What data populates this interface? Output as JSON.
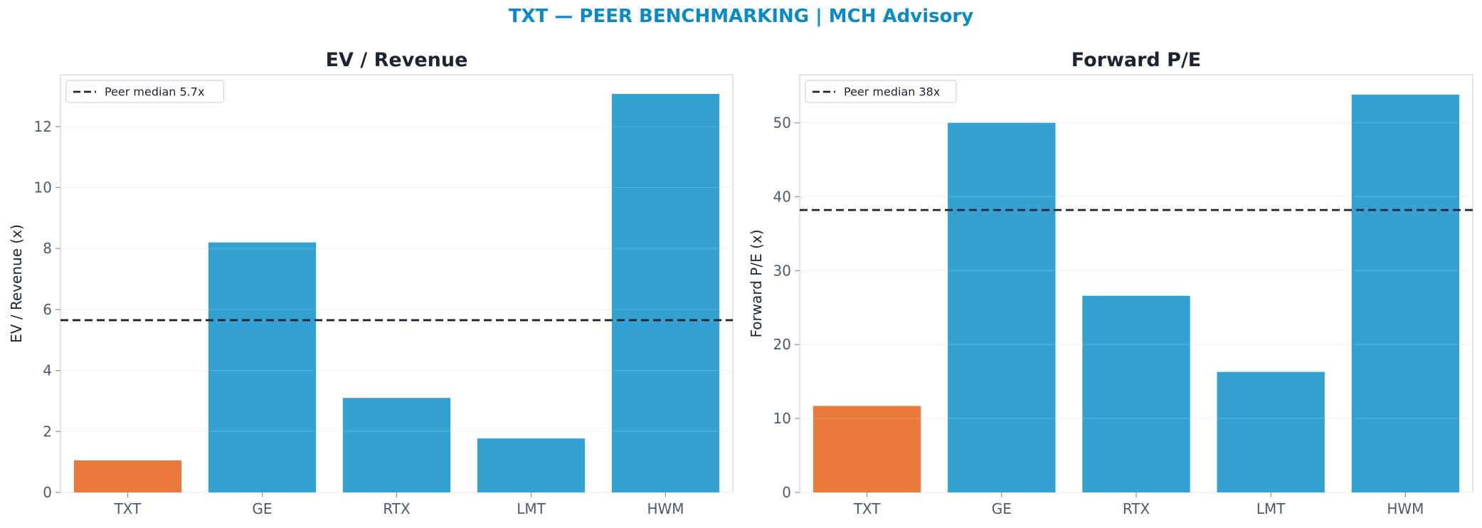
{
  "figure": {
    "suptitle": "TXT — PEER BENCHMARKING | MCH Advisory"
  },
  "colors": {
    "highlight": "#ec7a3c",
    "peer": "#33a2d3",
    "median_line": "#1b2433",
    "suptitle": "#0a8ac7"
  },
  "chart_data": [
    {
      "type": "bar",
      "title": "EV / Revenue",
      "xlabel": "",
      "ylabel": "EV / Revenue (x)",
      "categories": [
        "TXT",
        "GE",
        "RTX",
        "LMT",
        "HWM"
      ],
      "values": [
        1.05,
        8.2,
        3.1,
        1.77,
        13.07
      ],
      "highlight": "TXT",
      "ylim": [
        0,
        13.7
      ],
      "yticks": [
        0,
        2,
        4,
        6,
        8,
        10,
        12
      ],
      "grid": true,
      "reference_line": {
        "value": 5.65,
        "label": "Peer median 5.7x",
        "style": "dashed"
      },
      "legend_position": "top-left"
    },
    {
      "type": "bar",
      "title": "Forward P/E",
      "xlabel": "",
      "ylabel": "Forward P/E (x)",
      "categories": [
        "TXT",
        "GE",
        "RTX",
        "LMT",
        "HWM"
      ],
      "values": [
        11.7,
        50.0,
        26.6,
        16.3,
        53.8
      ],
      "highlight": "TXT",
      "ylim": [
        0,
        56.5
      ],
      "yticks": [
        0,
        10,
        20,
        30,
        40,
        50
      ],
      "grid": true,
      "reference_line": {
        "value": 38.2,
        "label": "Peer median 38x",
        "style": "dashed"
      },
      "legend_position": "top-left"
    }
  ]
}
